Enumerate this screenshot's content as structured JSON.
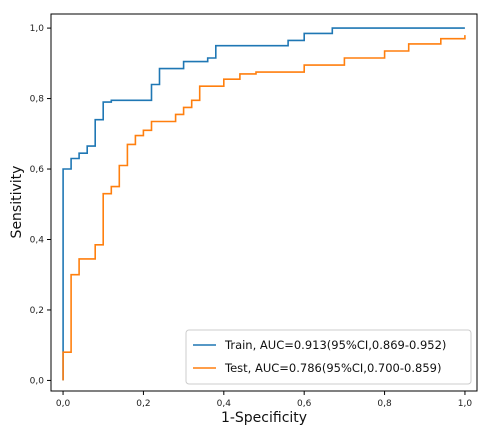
{
  "chart_data": {
    "type": "line",
    "title": "",
    "xlabel": "1-Specificity",
    "ylabel": "Sensitivity",
    "xlim": [
      -0.03,
      1.03
    ],
    "ylim": [
      -0.03,
      1.04
    ],
    "xticks": [
      0.0,
      0.2,
      0.4,
      0.6,
      0.8,
      1.0
    ],
    "xtick_labels": [
      "0,0",
      "0,2",
      "0,4",
      "0,6",
      "0,8",
      "1,0"
    ],
    "yticks": [
      0.0,
      0.2,
      0.4,
      0.6,
      0.8,
      1.0
    ],
    "ytick_labels": [
      "0,0",
      "0,2",
      "0,4",
      "0,6",
      "0,8",
      "1,0"
    ],
    "grid": false,
    "legend_position": "bottom-right",
    "series": [
      {
        "name": "Train, AUC=0.913(95%CI,0.869-0.952)",
        "color": "#1f77b4",
        "x": [
          0.0,
          0.0,
          0.0,
          0.02,
          0.02,
          0.04,
          0.04,
          0.06,
          0.06,
          0.08,
          0.08,
          0.1,
          0.1,
          0.12,
          0.12,
          0.22,
          0.22,
          0.24,
          0.24,
          0.3,
          0.3,
          0.36,
          0.36,
          0.38,
          0.38,
          0.56,
          0.56,
          0.6,
          0.6,
          0.67,
          0.67,
          1.0
        ],
        "y": [
          0.0,
          0.36,
          0.6,
          0.6,
          0.63,
          0.63,
          0.645,
          0.645,
          0.665,
          0.665,
          0.74,
          0.74,
          0.79,
          0.79,
          0.795,
          0.795,
          0.84,
          0.84,
          0.885,
          0.885,
          0.905,
          0.905,
          0.915,
          0.915,
          0.95,
          0.95,
          0.965,
          0.965,
          0.985,
          0.985,
          1.0,
          1.0
        ]
      },
      {
        "name": "Test, AUC=0.786(95%CI,0.700-0.859)",
        "color": "#ff7f0e",
        "x": [
          0.0,
          0.0,
          0.02,
          0.02,
          0.04,
          0.04,
          0.06,
          0.06,
          0.08,
          0.08,
          0.1,
          0.1,
          0.12,
          0.12,
          0.14,
          0.14,
          0.16,
          0.16,
          0.18,
          0.18,
          0.2,
          0.2,
          0.22,
          0.22,
          0.24,
          0.24,
          0.28,
          0.28,
          0.3,
          0.3,
          0.32,
          0.32,
          0.34,
          0.34,
          0.36,
          0.36,
          0.4,
          0.4,
          0.44,
          0.44,
          0.48,
          0.48,
          0.6,
          0.6,
          0.7,
          0.7,
          0.8,
          0.8,
          0.86,
          0.86,
          0.94,
          0.94,
          1.0,
          1.0
        ],
        "y": [
          0.0,
          0.08,
          0.08,
          0.3,
          0.3,
          0.345,
          0.345,
          0.345,
          0.345,
          0.385,
          0.385,
          0.53,
          0.53,
          0.55,
          0.55,
          0.61,
          0.61,
          0.67,
          0.67,
          0.695,
          0.695,
          0.71,
          0.71,
          0.735,
          0.735,
          0.735,
          0.735,
          0.755,
          0.755,
          0.775,
          0.775,
          0.795,
          0.795,
          0.835,
          0.835,
          0.835,
          0.835,
          0.855,
          0.855,
          0.87,
          0.87,
          0.875,
          0.875,
          0.895,
          0.895,
          0.915,
          0.915,
          0.935,
          0.935,
          0.955,
          0.955,
          0.97,
          0.97,
          0.98
        ]
      }
    ]
  }
}
